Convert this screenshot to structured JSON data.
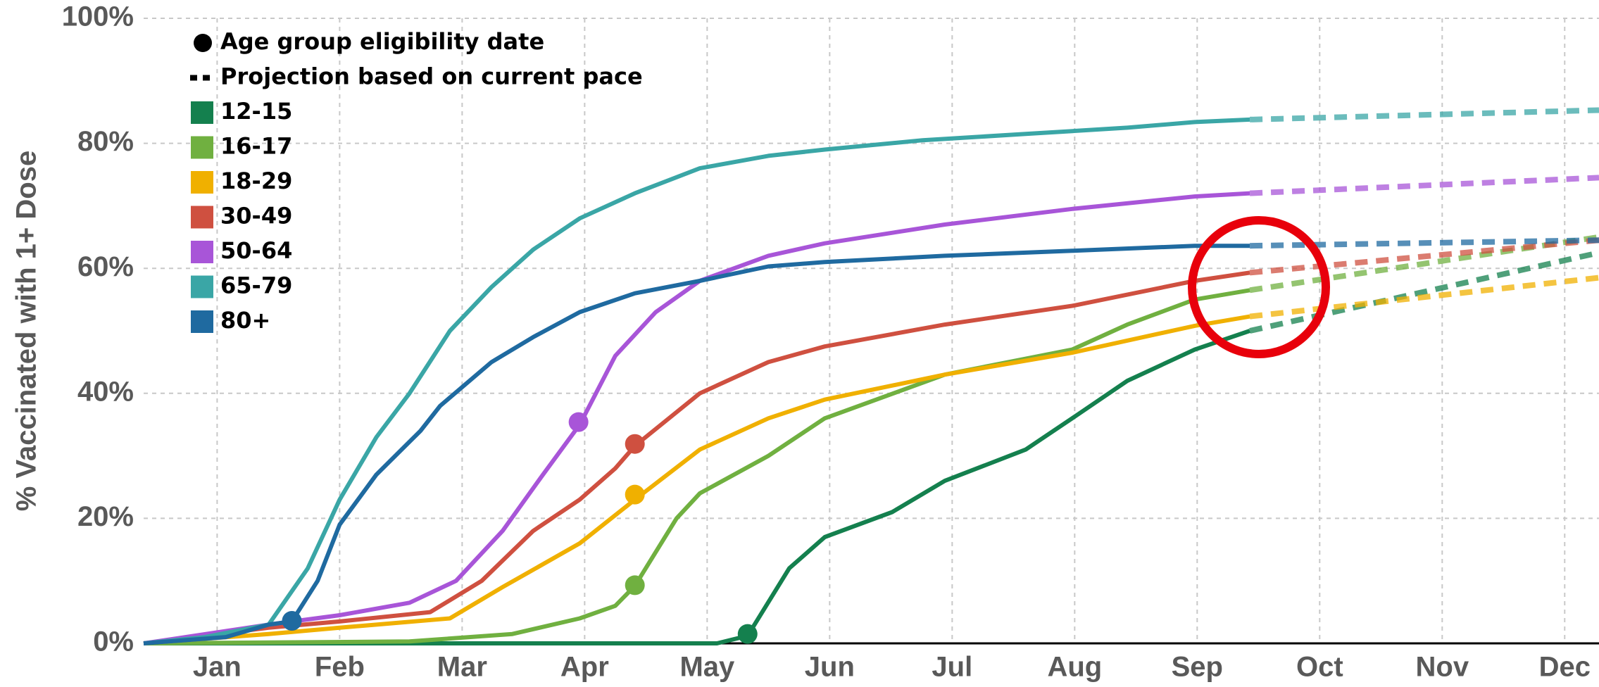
{
  "chart_data": {
    "type": "line",
    "y_label": "% Vaccinated with 1+ Dose",
    "xlim": [
      0.4,
      12.28
    ],
    "xticks": [
      {
        "value": 1,
        "label": "Jan"
      },
      {
        "value": 2,
        "label": "Feb"
      },
      {
        "value": 3,
        "label": "Mar"
      },
      {
        "value": 4,
        "label": "Apr"
      },
      {
        "value": 5,
        "label": "May"
      },
      {
        "value": 6,
        "label": "Jun"
      },
      {
        "value": 7,
        "label": "Jul"
      },
      {
        "value": 8,
        "label": "Aug"
      },
      {
        "value": 9,
        "label": "Sep"
      },
      {
        "value": 10,
        "label": "Oct"
      },
      {
        "value": 11,
        "label": "Nov"
      },
      {
        "value": 12,
        "label": "Dec"
      }
    ],
    "ylim": [
      0,
      100
    ],
    "yticks": [
      {
        "value": 0,
        "label": "0%"
      },
      {
        "value": 20,
        "label": "20%"
      },
      {
        "value": 40,
        "label": "40%"
      },
      {
        "value": 60,
        "label": "60%"
      },
      {
        "value": 80,
        "label": "80%"
      },
      {
        "value": 100,
        "label": "100%"
      }
    ],
    "grid": true,
    "legend_eligibility": "Age group eligibility date",
    "legend_projection": "Projection based on current pace",
    "series": [
      {
        "name": "12-15",
        "color": "#14804e",
        "x": [
          0.4,
          5.08,
          5.33,
          5.67,
          5.96,
          6.51,
          6.94,
          7.6,
          7.98,
          8.43,
          8.98,
          9.43
        ],
        "values": [
          0,
          0,
          1.2,
          12,
          17,
          21,
          26,
          31,
          36,
          42,
          47,
          50
        ],
        "projection": {
          "x": [
            9.43,
            12.28
          ],
          "values": [
            50,
            62.5
          ]
        },
        "eligibility": {
          "x": 5.33,
          "value": 1.5
        }
      },
      {
        "name": "16-17",
        "color": "#70b040",
        "x": [
          0.4,
          2.57,
          3.41,
          3.96,
          4.25,
          4.41,
          4.75,
          4.94,
          5.5,
          5.96,
          6.94,
          7.98,
          8.43,
          8.98,
          9.43
        ],
        "values": [
          0,
          0.3,
          1.5,
          4,
          6,
          9.2,
          20,
          24,
          30,
          36,
          43,
          47,
          51,
          55,
          56.5
        ],
        "projection": {
          "x": [
            9.43,
            12.28
          ],
          "values": [
            56.5,
            65
          ]
        },
        "eligibility": {
          "x": 4.41,
          "value": 9.3
        }
      },
      {
        "name": "18-29",
        "color": "#f0b000",
        "x": [
          0.4,
          1.42,
          2.0,
          2.9,
          3.33,
          3.96,
          4.41,
          4.94,
          5.5,
          5.96,
          6.94,
          7.98,
          8.98,
          9.43
        ],
        "values": [
          0,
          1.5,
          2.5,
          4,
          9,
          16,
          23,
          31,
          36,
          39,
          43,
          46.5,
          50.8,
          52.3
        ],
        "projection": {
          "x": [
            9.43,
            12.28
          ],
          "values": [
            52.3,
            58.5
          ]
        },
        "eligibility": {
          "x": 4.41,
          "value": 23.8
        }
      },
      {
        "name": "30-49",
        "color": "#cf5040",
        "x": [
          0.4,
          1.42,
          2.0,
          2.74,
          3.16,
          3.58,
          3.96,
          4.25,
          4.41,
          4.94,
          5.5,
          5.96,
          6.94,
          7.98,
          8.98,
          9.43
        ],
        "values": [
          0,
          2.5,
          3.5,
          5,
          10,
          18,
          23,
          28,
          31.6,
          40,
          45,
          47.5,
          51,
          54,
          58,
          59.3
        ],
        "projection": {
          "x": [
            9.43,
            12.28
          ],
          "values": [
            59.3,
            64.5
          ]
        },
        "eligibility": {
          "x": 4.41,
          "value": 31.9
        }
      },
      {
        "name": "50-64",
        "color": "#a855d8",
        "x": [
          0.4,
          1.42,
          2.0,
          2.57,
          2.95,
          3.33,
          3.66,
          3.96,
          4.25,
          4.58,
          4.94,
          5.5,
          5.96,
          6.94,
          7.98,
          8.98,
          9.43
        ],
        "values": [
          0,
          3,
          4.5,
          6.5,
          10,
          18,
          27,
          35,
          46,
          53,
          58,
          62,
          64,
          67,
          69.5,
          71.5,
          72
        ],
        "projection": {
          "x": [
            9.43,
            12.28
          ],
          "values": [
            72,
            74.5
          ]
        },
        "eligibility": {
          "x": 3.95,
          "value": 35.4
        }
      },
      {
        "name": "65-79",
        "color": "#3aa6a6",
        "x": [
          0.4,
          0.9,
          1.42,
          1.74,
          2.0,
          2.3,
          2.57,
          2.9,
          3.24,
          3.58,
          3.96,
          4.41,
          4.94,
          5.5,
          5.96,
          6.76,
          7.6,
          8.43,
          8.98,
          9.43
        ],
        "values": [
          0,
          1,
          3,
          12,
          23,
          33,
          40,
          50,
          57,
          63,
          68,
          72,
          76,
          78,
          79,
          80.5,
          81.5,
          82.5,
          83.4,
          83.8
        ],
        "projection": {
          "x": [
            9.43,
            12.28
          ],
          "values": [
            83.8,
            85.3
          ]
        }
      },
      {
        "name": "80+",
        "color": "#1f6aa0",
        "x": [
          0.4,
          1.07,
          1.42,
          1.61,
          1.82,
          2.0,
          2.3,
          2.66,
          2.82,
          3.24,
          3.58,
          3.96,
          4.41,
          4.94,
          5.5,
          5.96,
          6.94,
          7.98,
          8.98,
          9.43
        ],
        "values": [
          0,
          1,
          3,
          3.5,
          10,
          19,
          27,
          34,
          38,
          45,
          49,
          53,
          56,
          58,
          60.3,
          61,
          62,
          62.8,
          63.6,
          63.6
        ],
        "projection": {
          "x": [
            9.43,
            12.28
          ],
          "values": [
            63.6,
            64.5
          ]
        },
        "eligibility": {
          "x": 1.61,
          "value": 3.6
        }
      }
    ]
  }
}
